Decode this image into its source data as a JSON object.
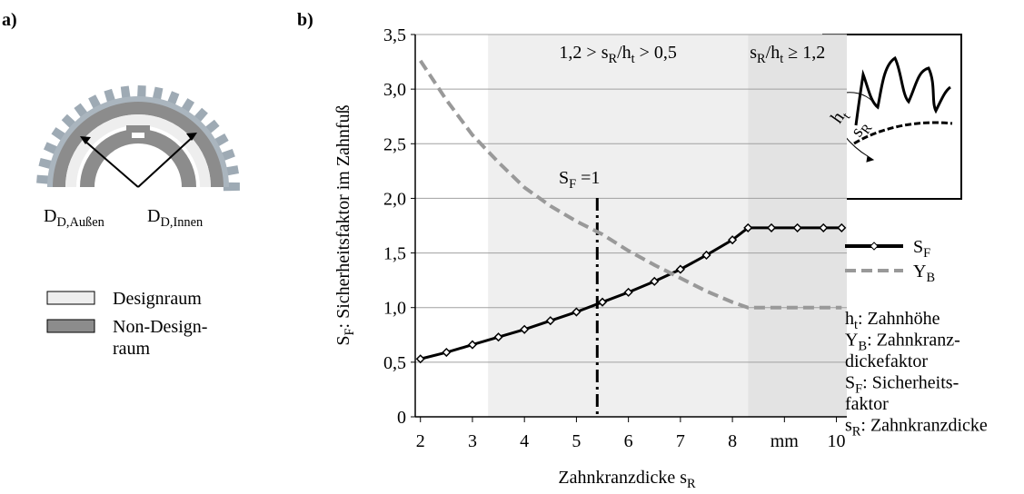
{
  "panel_a": {
    "label": "a)",
    "outer_label": [
      "D",
      {
        "sub": "D,Außen"
      }
    ],
    "inner_label": [
      "D",
      {
        "sub": "D,Innen"
      }
    ],
    "legend": [
      {
        "lines": [
          "Designraum"
        ],
        "color": "#eeeeee"
      },
      {
        "lines": [
          "Non-Design-",
          "raum"
        ],
        "color": "#8c8c8c"
      }
    ]
  },
  "panel_b_label": "b)",
  "chart_data": {
    "type": "line",
    "x_label": [
      "Zahnkranzdicke s",
      {
        "sub": "R"
      }
    ],
    "y_label": [
      "S",
      {
        "sub": "F"
      },
      ": Sicherheitsfaktor im Zahnfuß"
    ],
    "x": [
      2,
      2.5,
      3,
      3.5,
      4,
      4.5,
      5,
      5.5,
      6,
      6.5,
      7,
      7.5,
      8,
      8.3,
      8.75,
      9.25,
      9.75,
      10.1
    ],
    "series": [
      {
        "name": [
          "S",
          {
            "sub": "F"
          }
        ],
        "color": "#000000",
        "style": "marker",
        "values": [
          0.53,
          0.59,
          0.66,
          0.73,
          0.8,
          0.88,
          0.96,
          1.05,
          1.14,
          1.24,
          1.35,
          1.48,
          1.62,
          1.73,
          1.73,
          1.73,
          1.73,
          1.73
        ]
      },
      {
        "name": [
          "Y",
          {
            "sub": "B"
          }
        ],
        "color": "#999999",
        "style": "dashed",
        "values": [
          3.26,
          2.9,
          2.58,
          2.33,
          2.1,
          1.93,
          1.79,
          1.67,
          1.52,
          1.39,
          1.27,
          1.15,
          1.05,
          1.0,
          1.0,
          1.0,
          1.0,
          1.0
        ]
      }
    ],
    "xlim": [
      1.9,
      10.2
    ],
    "ylim": [
      0,
      3.5
    ],
    "xticks": [
      2,
      3,
      4,
      5,
      6,
      7,
      8,
      {
        "value": 9,
        "label": "mm"
      },
      10
    ],
    "yticks": [
      0,
      {
        "value": 0.5,
        "label": "0,5"
      },
      {
        "value": 1,
        "label": "1,0"
      },
      {
        "value": 1.5,
        "label": "1,5"
      },
      {
        "value": 2,
        "label": "2,0"
      },
      {
        "value": 2.5,
        "label": "2,5"
      },
      {
        "value": 3,
        "label": "3,0"
      },
      {
        "value": 3.5,
        "label": "3,5"
      }
    ],
    "grid": true,
    "regions": [
      {
        "from": 3.3,
        "to": 8.3,
        "color": "#efefef",
        "label": [
          "1,2 > s",
          {
            "sub": "R"
          },
          "/h",
          {
            "sub": "t"
          },
          " > 0,5"
        ]
      },
      {
        "from": 8.3,
        "to": 10.2,
        "color": "#e3e3e3",
        "label": [
          "s",
          {
            "sub": "R"
          },
          "/h",
          {
            "sub": "t"
          },
          " ≥ 1,2"
        ]
      }
    ],
    "reference_line": {
      "x": 5.4,
      "label": [
        "S",
        {
          "sub": "F"
        },
        " =1"
      ]
    },
    "inset_labels": {
      "height": [
        "h",
        {
          "sub": "t"
        }
      ],
      "thickness": [
        "s",
        {
          "sub": "R"
        }
      ]
    },
    "notes": [
      [
        "h",
        {
          "sub": "t"
        },
        ": Zahnhöhe"
      ],
      [
        "Y",
        {
          "sub": "B"
        },
        ": Zahnkranz-"
      ],
      [
        "dickefaktor"
      ],
      [
        "S",
        {
          "sub": "F"
        },
        ": Sicherheits-"
      ],
      [
        "faktor"
      ],
      [
        "s",
        {
          "sub": "R"
        },
        ": Zahnkranzdicke"
      ]
    ]
  }
}
